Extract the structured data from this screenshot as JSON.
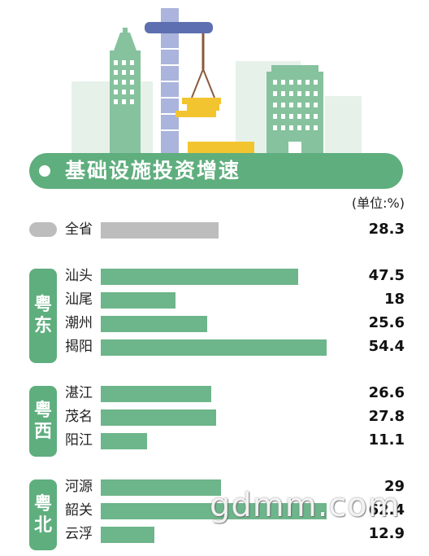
{
  "chart_data": {
    "type": "bar",
    "title": "基础设施投资增速",
    "unit": "(单位:%)",
    "xlim": [
      0,
      54.4
    ],
    "colors": {
      "province": "#bdbdbd",
      "city": "#6db58a",
      "region": "#5fae7e"
    },
    "province": {
      "label": "全省",
      "value": 28.3
    },
    "groups": [
      {
        "region": "粤东",
        "chars": [
          "粤",
          "东"
        ],
        "categories": [
          "汕头",
          "汕尾",
          "潮州",
          "揭阳"
        ],
        "values": [
          47.5,
          18,
          25.6,
          54.4
        ]
      },
      {
        "region": "粤西",
        "chars": [
          "粤",
          "西"
        ],
        "categories": [
          "湛江",
          "茂名",
          "阳江"
        ],
        "values": [
          26.6,
          27.8,
          11.1
        ]
      },
      {
        "region": "粤北",
        "chars": [
          "粤",
          "北"
        ],
        "categories": [
          "河源",
          "韶关",
          "云浮"
        ],
        "values": [
          29,
          62.4,
          12.9
        ]
      }
    ]
  },
  "watermark": "gdmm.com"
}
